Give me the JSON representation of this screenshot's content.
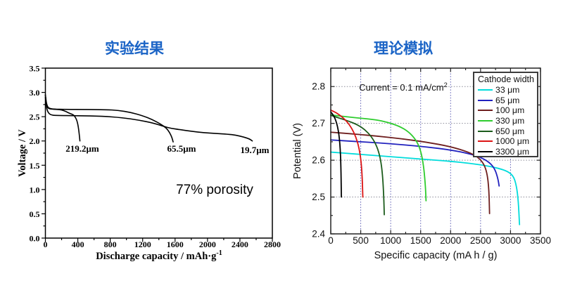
{
  "page": {
    "background": "#ffffff"
  },
  "chart_data": [
    {
      "type": "line",
      "title": "实验结果",
      "title_color": "#1B64C6",
      "xlabel": {
        "main": "Discharge capacity / mAh·g",
        "sup": "-1"
      },
      "ylabel": "Voltage / V",
      "xlim": [
        0,
        2800
      ],
      "ylim": [
        0,
        3.5
      ],
      "xticks": [
        0,
        400,
        800,
        1200,
        1600,
        2000,
        2400,
        2800
      ],
      "yticks": [
        0.0,
        0.5,
        1.0,
        1.5,
        2.0,
        2.5,
        3.0,
        3.5
      ],
      "grid": false,
      "legend": null,
      "annotations": [
        {
          "text": "219.2μm",
          "x": 456,
          "y": 1.78,
          "font": "serif",
          "size": 13,
          "bold": true
        },
        {
          "text": "65.5μm",
          "x": 1680,
          "y": 1.78,
          "font": "serif",
          "size": 13,
          "bold": true
        },
        {
          "text": "19.7μm",
          "x": 2583,
          "y": 1.75,
          "font": "serif",
          "size": 13,
          "bold": true
        },
        {
          "text": "77% porosity",
          "x": 2088,
          "y": 0.91,
          "font": "sans",
          "size": 19,
          "bold": false
        }
      ],
      "series": [
        {
          "name": "219.2μm",
          "color": "#000000",
          "points": [
            [
              0,
              2.95
            ],
            [
              5,
              2.87
            ],
            [
              10,
              2.79
            ],
            [
              16,
              2.73
            ],
            [
              25,
              2.69
            ],
            [
              45,
              2.665
            ],
            [
              80,
              2.655
            ],
            [
              140,
              2.65
            ],
            [
              200,
              2.64
            ],
            [
              250,
              2.61
            ],
            [
              290,
              2.575
            ],
            [
              320,
              2.555
            ],
            [
              345,
              2.54
            ],
            [
              365,
              2.5
            ],
            [
              385,
              2.44
            ],
            [
              400,
              2.35
            ],
            [
              412,
              2.22
            ],
            [
              420,
              2.1
            ],
            [
              426,
              2.0
            ]
          ]
        },
        {
          "name": "65.5μm",
          "color": "#000000",
          "points": [
            [
              0,
              2.95
            ],
            [
              6,
              2.86
            ],
            [
              14,
              2.77
            ],
            [
              28,
              2.7
            ],
            [
              50,
              2.67
            ],
            [
              100,
              2.655
            ],
            [
              250,
              2.65
            ],
            [
              500,
              2.648
            ],
            [
              750,
              2.645
            ],
            [
              900,
              2.63
            ],
            [
              1050,
              2.59
            ],
            [
              1200,
              2.52
            ],
            [
              1320,
              2.44
            ],
            [
              1420,
              2.35
            ],
            [
              1490,
              2.27
            ],
            [
              1530,
              2.18
            ],
            [
              1560,
              2.08
            ],
            [
              1576,
              1.98
            ]
          ]
        },
        {
          "name": "19.7μm",
          "color": "#000000",
          "points": [
            [
              0,
              2.9
            ],
            [
              8,
              2.76
            ],
            [
              20,
              2.64
            ],
            [
              40,
              2.57
            ],
            [
              70,
              2.535
            ],
            [
              120,
              2.525
            ],
            [
              400,
              2.52
            ],
            [
              700,
              2.51
            ],
            [
              950,
              2.48
            ],
            [
              1150,
              2.43
            ],
            [
              1330,
              2.37
            ],
            [
              1457,
              2.3
            ],
            [
              1550,
              2.26
            ],
            [
              1650,
              2.235
            ],
            [
              1800,
              2.2
            ],
            [
              1950,
              2.17
            ],
            [
              2100,
              2.155
            ],
            [
              2250,
              2.14
            ],
            [
              2350,
              2.12
            ],
            [
              2450,
              2.08
            ],
            [
              2520,
              2.04
            ],
            [
              2553,
              2.0
            ]
          ]
        }
      ]
    },
    {
      "type": "line",
      "title": "理论模拟",
      "title_color": "#1B64C6",
      "xlabel": {
        "main": "Specific capacity (mA h / g)",
        "sup": ""
      },
      "ylabel": "Potential (V)",
      "xlim": [
        0,
        3500
      ],
      "ylim": [
        2.4,
        2.85
      ],
      "xticks": [
        0,
        500,
        1000,
        1500,
        2000,
        2500,
        3000,
        3500
      ],
      "yticks": [
        2.4,
        2.5,
        2.6,
        2.7,
        2.8
      ],
      "grid": true,
      "legend": {
        "title": "Cathode width"
      },
      "annotations": [
        {
          "text": "Current = 0.1 mA/cm",
          "sup": "2",
          "x": 1210,
          "y": 2.789,
          "font": "sans",
          "size": 13,
          "bold": false
        }
      ],
      "series": [
        {
          "name": "33 μm",
          "color": "#00DCDC",
          "points": [
            [
              0,
              2.622
            ],
            [
              400,
              2.617
            ],
            [
              800,
              2.612
            ],
            [
              1200,
              2.607
            ],
            [
              1600,
              2.602
            ],
            [
              2000,
              2.597
            ],
            [
              2300,
              2.592
            ],
            [
              2600,
              2.585
            ],
            [
              2800,
              2.578
            ],
            [
              2950,
              2.57
            ],
            [
              3050,
              2.557
            ],
            [
              3100,
              2.53
            ],
            [
              3130,
              2.49
            ],
            [
              3150,
              2.425
            ]
          ]
        },
        {
          "name": "65 μm",
          "color": "#2121BE",
          "points": [
            [
              0,
              2.655
            ],
            [
              400,
              2.651
            ],
            [
              800,
              2.647
            ],
            [
              1200,
              2.642
            ],
            [
              1600,
              2.636
            ],
            [
              2000,
              2.628
            ],
            [
              2300,
              2.618
            ],
            [
              2500,
              2.608
            ],
            [
              2650,
              2.594
            ],
            [
              2740,
              2.576
            ],
            [
              2790,
              2.55
            ],
            [
              2810,
              2.53
            ]
          ]
        },
        {
          "name": "100 μm",
          "color": "#6E1E1E",
          "points": [
            [
              0,
              2.676
            ],
            [
              400,
              2.671
            ],
            [
              800,
              2.665
            ],
            [
              1200,
              2.658
            ],
            [
              1600,
              2.649
            ],
            [
              2000,
              2.637
            ],
            [
              2300,
              2.622
            ],
            [
              2450,
              2.609
            ],
            [
              2550,
              2.592
            ],
            [
              2610,
              2.565
            ],
            [
              2640,
              2.52
            ],
            [
              2650,
              2.455
            ]
          ]
        },
        {
          "name": "330 μm",
          "color": "#2ECC2E",
          "points": [
            [
              0,
              2.723
            ],
            [
              250,
              2.718
            ],
            [
              500,
              2.714
            ],
            [
              750,
              2.71
            ],
            [
              950,
              2.703
            ],
            [
              1150,
              2.692
            ],
            [
              1300,
              2.677
            ],
            [
              1420,
              2.656
            ],
            [
              1500,
              2.628
            ],
            [
              1550,
              2.585
            ],
            [
              1580,
              2.53
            ],
            [
              1590,
              2.49
            ]
          ]
        },
        {
          "name": "650 μm",
          "color": "#1C5C1C",
          "points": [
            [
              0,
              2.722
            ],
            [
              150,
              2.714
            ],
            [
              300,
              2.706
            ],
            [
              450,
              2.696
            ],
            [
              570,
              2.683
            ],
            [
              680,
              2.664
            ],
            [
              770,
              2.638
            ],
            [
              830,
              2.605
            ],
            [
              865,
              2.56
            ],
            [
              885,
              2.5
            ],
            [
              893,
              2.452
            ]
          ]
        },
        {
          "name": "1000 μm",
          "color": "#DC1414",
          "points": [
            [
              0,
              2.736
            ],
            [
              90,
              2.729
            ],
            [
              180,
              2.719
            ],
            [
              270,
              2.705
            ],
            [
              350,
              2.687
            ],
            [
              420,
              2.663
            ],
            [
              470,
              2.635
            ],
            [
              505,
              2.6
            ],
            [
              525,
              2.555
            ],
            [
              535,
              2.5
            ]
          ]
        },
        {
          "name": "3300 μm",
          "color": "#000000",
          "points": [
            [
              0,
              2.731
            ],
            [
              35,
              2.724
            ],
            [
              70,
              2.714
            ],
            [
              100,
              2.7
            ],
            [
              125,
              2.682
            ],
            [
              145,
              2.658
            ],
            [
              158,
              2.63
            ],
            [
              166,
              2.6
            ],
            [
              172,
              2.56
            ],
            [
              176,
              2.51
            ],
            [
              177,
              2.5
            ]
          ]
        }
      ]
    }
  ]
}
